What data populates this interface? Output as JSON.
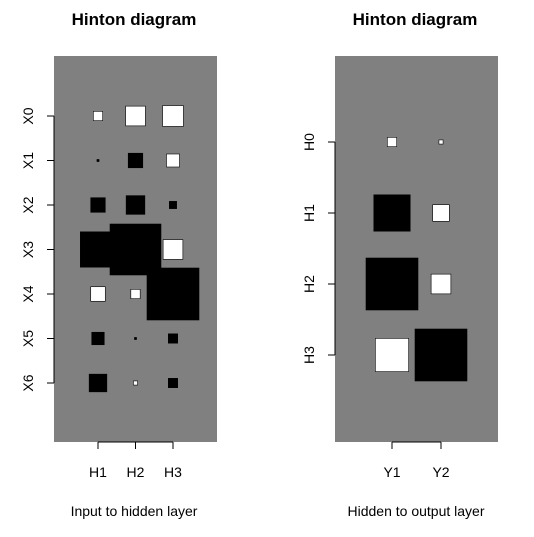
{
  "chart_data": [
    {
      "type": "hinton",
      "title": "Hinton diagram",
      "xlabel": "Input to hidden layer",
      "background": "#808080",
      "positive_color": "#ffffff",
      "negative_color": "#000000",
      "columns": [
        "H1",
        "H2",
        "H3"
      ],
      "rows": [
        "X0",
        "X1",
        "X2",
        "X3",
        "X4",
        "X5",
        "X6"
      ],
      "values": [
        [
          0.18,
          0.38,
          0.4
        ],
        [
          -0.04,
          -0.28,
          0.25
        ],
        [
          -0.28,
          -0.36,
          -0.14
        ],
        [
          -0.68,
          -0.98,
          0.38
        ],
        [
          0.28,
          0.18,
          -1.0
        ],
        [
          -0.24,
          -0.04,
          -0.18
        ],
        [
          -0.34,
          0.08,
          -0.18
        ]
      ]
    },
    {
      "type": "hinton",
      "title": "Hinton diagram",
      "xlabel": "Hidden to output layer",
      "background": "#808080",
      "positive_color": "#ffffff",
      "negative_color": "#000000",
      "columns": [
        "Y1",
        "Y2"
      ],
      "rows": [
        "H0",
        "H1",
        "H2",
        "H3"
      ],
      "values": [
        [
          0.18,
          0.08
        ],
        [
          -0.7,
          0.32
        ],
        [
          -1.0,
          0.38
        ],
        [
          0.64,
          -1.0
        ]
      ]
    }
  ]
}
